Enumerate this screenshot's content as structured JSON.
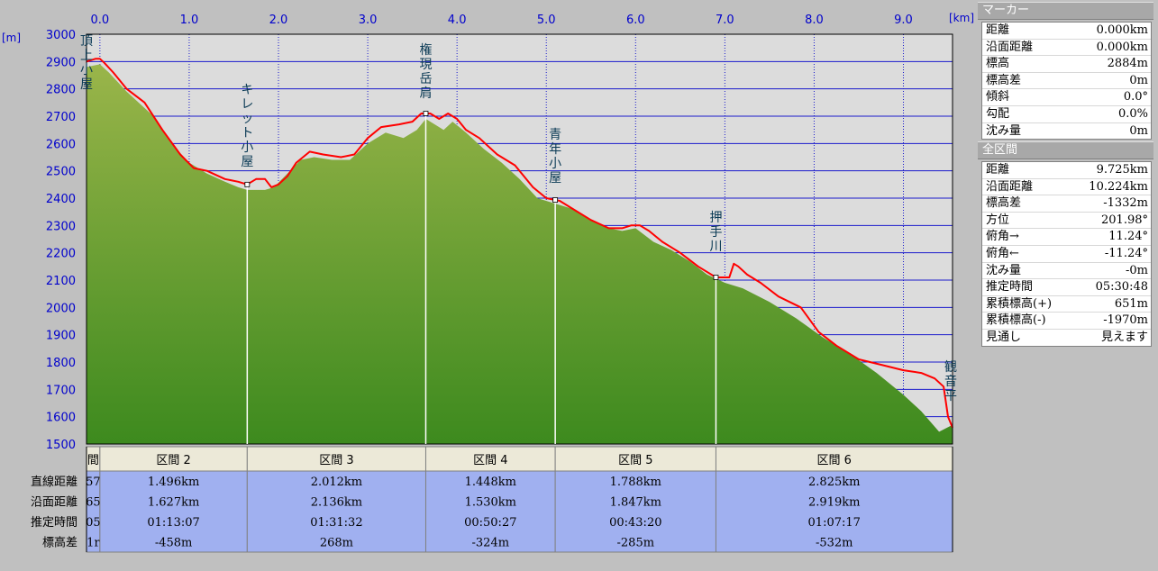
{
  "chart_data": {
    "type": "area",
    "title": "",
    "xlabel": "[km]",
    "ylabel": "[m]",
    "xlim": [
      -0.15,
      9.55
    ],
    "ylim": [
      1500,
      3000
    ],
    "x_ticks": [
      "0.0",
      "1.0",
      "2.0",
      "3.0",
      "4.0",
      "5.0",
      "6.0",
      "7.0",
      "8.0",
      "9.0"
    ],
    "y_ticks": [
      "3000",
      "2900",
      "2800",
      "2700",
      "2600",
      "2500",
      "2400",
      "2300",
      "2200",
      "2100",
      "2000",
      "1900",
      "1800",
      "1700",
      "1600",
      "1500"
    ],
    "grid": true,
    "colors": {
      "plot_bg": "#dcdcdc",
      "terrain_top": "#9ab54a",
      "terrain_bottom": "#3d8a1e",
      "route": "#ff0000",
      "grid": "#1a1acc",
      "table_header": "#ece9d8",
      "table_rows": "#a0b0f0"
    },
    "series": [
      {
        "id": "terrain",
        "points": [
          [
            -0.15,
            2880
          ],
          [
            0.0,
            2890
          ],
          [
            0.1,
            2860
          ],
          [
            0.3,
            2790
          ],
          [
            0.6,
            2700
          ],
          [
            0.8,
            2600
          ],
          [
            1.0,
            2530
          ],
          [
            1.2,
            2490
          ],
          [
            1.4,
            2460
          ],
          [
            1.55,
            2440
          ],
          [
            1.65,
            2430
          ],
          [
            1.75,
            2430
          ],
          [
            1.85,
            2430
          ],
          [
            1.95,
            2440
          ],
          [
            2.1,
            2490
          ],
          [
            2.25,
            2540
          ],
          [
            2.4,
            2550
          ],
          [
            2.6,
            2540
          ],
          [
            2.8,
            2540
          ],
          [
            3.0,
            2600
          ],
          [
            3.2,
            2640
          ],
          [
            3.4,
            2620
          ],
          [
            3.55,
            2650
          ],
          [
            3.65,
            2690
          ],
          [
            3.75,
            2670
          ],
          [
            3.85,
            2650
          ],
          [
            3.95,
            2680
          ],
          [
            4.1,
            2640
          ],
          [
            4.3,
            2580
          ],
          [
            4.5,
            2530
          ],
          [
            4.7,
            2470
          ],
          [
            4.9,
            2400
          ],
          [
            5.1,
            2380
          ],
          [
            5.3,
            2360
          ],
          [
            5.5,
            2320
          ],
          [
            5.7,
            2290
          ],
          [
            5.85,
            2280
          ],
          [
            6.0,
            2290
          ],
          [
            6.2,
            2240
          ],
          [
            6.4,
            2210
          ],
          [
            6.6,
            2170
          ],
          [
            6.8,
            2120
          ],
          [
            7.0,
            2090
          ],
          [
            7.2,
            2070
          ],
          [
            7.5,
            2020
          ],
          [
            7.8,
            1960
          ],
          [
            8.1,
            1890
          ],
          [
            8.4,
            1830
          ],
          [
            8.7,
            1760
          ],
          [
            9.0,
            1680
          ],
          [
            9.2,
            1620
          ],
          [
            9.4,
            1545
          ],
          [
            9.55,
            1570
          ]
        ]
      },
      {
        "id": "route",
        "points": [
          [
            -0.15,
            2900
          ],
          [
            -0.05,
            2910
          ],
          [
            0.0,
            2910
          ],
          [
            0.05,
            2895
          ],
          [
            0.15,
            2860
          ],
          [
            0.3,
            2800
          ],
          [
            0.5,
            2750
          ],
          [
            0.7,
            2650
          ],
          [
            0.9,
            2560
          ],
          [
            1.05,
            2510
          ],
          [
            1.2,
            2500
          ],
          [
            1.4,
            2470
          ],
          [
            1.55,
            2460
          ],
          [
            1.65,
            2450
          ],
          [
            1.75,
            2470
          ],
          [
            1.85,
            2470
          ],
          [
            1.92,
            2440
          ],
          [
            2.0,
            2450
          ],
          [
            2.1,
            2480
          ],
          [
            2.2,
            2530
          ],
          [
            2.35,
            2570
          ],
          [
            2.5,
            2560
          ],
          [
            2.7,
            2550
          ],
          [
            2.85,
            2560
          ],
          [
            3.0,
            2620
          ],
          [
            3.15,
            2660
          ],
          [
            3.35,
            2670
          ],
          [
            3.5,
            2680
          ],
          [
            3.6,
            2710
          ],
          [
            3.7,
            2710
          ],
          [
            3.8,
            2690
          ],
          [
            3.9,
            2710
          ],
          [
            4.0,
            2690
          ],
          [
            4.1,
            2650
          ],
          [
            4.25,
            2620
          ],
          [
            4.45,
            2560
          ],
          [
            4.65,
            2520
          ],
          [
            4.85,
            2440
          ],
          [
            5.0,
            2400
          ],
          [
            5.15,
            2390
          ],
          [
            5.3,
            2360
          ],
          [
            5.5,
            2320
          ],
          [
            5.7,
            2290
          ],
          [
            5.85,
            2290
          ],
          [
            5.95,
            2300
          ],
          [
            6.05,
            2300
          ],
          [
            6.15,
            2280
          ],
          [
            6.3,
            2240
          ],
          [
            6.5,
            2200
          ],
          [
            6.7,
            2150
          ],
          [
            6.9,
            2110
          ],
          [
            7.05,
            2110
          ],
          [
            7.1,
            2160
          ],
          [
            7.15,
            2150
          ],
          [
            7.25,
            2120
          ],
          [
            7.4,
            2090
          ],
          [
            7.6,
            2040
          ],
          [
            7.85,
            2000
          ],
          [
            8.05,
            1910
          ],
          [
            8.25,
            1860
          ],
          [
            8.5,
            1810
          ],
          [
            8.75,
            1790
          ],
          [
            9.0,
            1770
          ],
          [
            9.2,
            1760
          ],
          [
            9.35,
            1740
          ],
          [
            9.45,
            1710
          ],
          [
            9.5,
            1600
          ],
          [
            9.55,
            1560
          ]
        ]
      }
    ],
    "markers": [
      {
        "label": "頂上小屋",
        "x": -0.15
      },
      {
        "label": "キレット小屋",
        "x": 1.65
      },
      {
        "label": "権現岳肩",
        "x": 3.65
      },
      {
        "label": "青年小屋",
        "x": 5.1
      },
      {
        "label": "押手川",
        "x": 6.9
      },
      {
        "label": "観音平",
        "x": 9.55
      }
    ],
    "table": {
      "row_headers": [
        "直線距離",
        "沿面距離",
        "推定時間",
        "標高差"
      ],
      "columns": [
        {
          "header": "間",
          "values": [
            "57",
            "65",
            "05",
            "1r"
          ],
          "x_start": -0.15,
          "x_end": 0.0
        },
        {
          "header": "区間 2",
          "values": [
            "1.496km",
            "1.627km",
            "01:13:07",
            "-458m"
          ],
          "x_start": 0.0,
          "x_end": 1.65
        },
        {
          "header": "区間 3",
          "values": [
            "2.012km",
            "2.136km",
            "01:31:32",
            "268m"
          ],
          "x_start": 1.65,
          "x_end": 3.65
        },
        {
          "header": "区間 4",
          "values": [
            "1.448km",
            "1.530km",
            "00:50:27",
            "-324m"
          ],
          "x_start": 3.65,
          "x_end": 5.1
        },
        {
          "header": "区間 5",
          "values": [
            "1.788km",
            "1.847km",
            "00:43:20",
            "-285m"
          ],
          "x_start": 5.1,
          "x_end": 6.9
        },
        {
          "header": "区間 6",
          "values": [
            "2.825km",
            "2.919km",
            "01:07:17",
            "-532m"
          ],
          "x_start": 6.9,
          "x_end": 9.55
        }
      ]
    }
  },
  "marker_panel": {
    "title": "マーカー",
    "rows": [
      {
        "label": "距離",
        "value": "0.000km"
      },
      {
        "label": "沿面距離",
        "value": "0.000km"
      },
      {
        "label": "標高",
        "value": "2884m"
      },
      {
        "label": "標高差",
        "value": "0m"
      },
      {
        "label": "傾斜",
        "value": "0.0°"
      },
      {
        "label": "勾配",
        "value": "0.0%"
      },
      {
        "label": "沈み量",
        "value": "0m"
      }
    ]
  },
  "total_panel": {
    "title": "全区間",
    "rows": [
      {
        "label": "距離",
        "value": "9.725km"
      },
      {
        "label": "沿面距離",
        "value": "10.224km"
      },
      {
        "label": "標高差",
        "value": "-1332m"
      },
      {
        "label": "方位",
        "value": "201.98°"
      },
      {
        "label": "俯角→",
        "value": "11.24°"
      },
      {
        "label": "俯角←",
        "value": "-11.24°"
      },
      {
        "label": "沈み量",
        "value": "-0m"
      },
      {
        "label": "推定時間",
        "value": "05:30:48"
      },
      {
        "label": "累積標高(+)",
        "value": "651m"
      },
      {
        "label": "累積標高(-)",
        "value": "-1970m"
      },
      {
        "label": "見通し",
        "value": "見えます"
      }
    ]
  }
}
